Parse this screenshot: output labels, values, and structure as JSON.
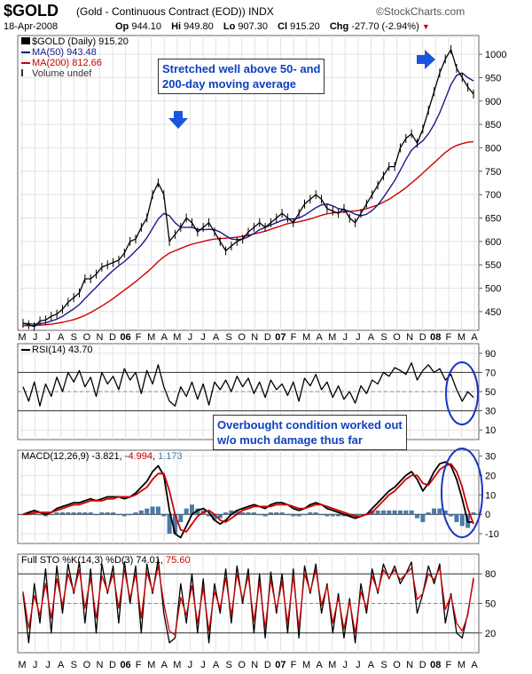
{
  "header": {
    "ticker": "$GOLD",
    "description": "(Gold - Continuous Contract (EOD))",
    "exchange": "INDX",
    "brand": "©StockCharts.com",
    "date": "18-Apr-2008",
    "open_label": "Op",
    "open": "944.10",
    "high_label": "Hi",
    "high": "949.80",
    "low_label": "Lo",
    "low": "907.30",
    "close_label": "Cl",
    "close": "915.20",
    "chg_label": "Chg",
    "chg": "-27.70 (-2.94%)"
  },
  "price_panel": {
    "legend": [
      {
        "text": "$GOLD (Daily) 915.20",
        "color": "#000000"
      },
      {
        "text": "MA(50) 943.48",
        "color": "#1a1a8c"
      },
      {
        "text": "MA(200) 812.66",
        "color": "#cc0000"
      },
      {
        "text": "Volume undef",
        "color": "#333333"
      }
    ],
    "callout": "Stretched well above 50- and\n200-day moving average"
  },
  "rsi_panel": {
    "label": "RSI(14) 43.70",
    "callout": "Overbought condition worked out\nw/o much damage thus far"
  },
  "macd_panel": {
    "label_main": "MACD(12,26,9) -3.821, ",
    "label_signal": "-4.994",
    "label_sep": ", ",
    "label_hist": "1.173"
  },
  "sto_panel": {
    "label_main": "Full STO %K(14,3) %D(3) 74.01, ",
    "label_d": "75.60"
  },
  "colors": {
    "price": "#000000",
    "ma50": "#1a1a8c",
    "ma200": "#cc0000",
    "rsi": "#000000",
    "macd": "#000000",
    "signal": "#cc0000",
    "histogram": "#4a7aa6",
    "sto_k": "#000000",
    "sto_d": "#cc0000",
    "callout_text": "#1040c0",
    "arrow": "#1a55e0"
  },
  "chart_data": [
    {
      "type": "line",
      "title": "$GOLD (Daily)",
      "x_tick_labels": [
        "M",
        "J",
        "J",
        "A",
        "S",
        "O",
        "N",
        "D",
        "06",
        "F",
        "M",
        "A",
        "M",
        "J",
        "J",
        "A",
        "S",
        "O",
        "N",
        "D",
        "07",
        "F",
        "M",
        "A",
        "M",
        "J",
        "J",
        "A",
        "S",
        "O",
        "N",
        "D",
        "08",
        "F",
        "M",
        "A"
      ],
      "y_ticks": [
        450,
        500,
        550,
        600,
        650,
        700,
        750,
        800,
        850,
        900,
        950,
        1000
      ],
      "ylim": [
        410,
        1040
      ],
      "grid": true,
      "series": [
        {
          "name": "$GOLD",
          "values": [
            425,
            422,
            418,
            430,
            432,
            440,
            445,
            455,
            470,
            480,
            490,
            520,
            520,
            530,
            545,
            550,
            555,
            560,
            575,
            600,
            605,
            630,
            650,
            700,
            725,
            700,
            600,
            615,
            630,
            650,
            640,
            620,
            630,
            640,
            620,
            600,
            580,
            590,
            600,
            605,
            620,
            630,
            640,
            630,
            640,
            650,
            660,
            650,
            640,
            660,
            680,
            690,
            700,
            690,
            670,
            665,
            660,
            670,
            650,
            640,
            660,
            680,
            700,
            720,
            740,
            760,
            760,
            800,
            820,
            830,
            810,
            840,
            880,
            920,
            960,
            990,
            1010,
            970,
            950,
            930,
            915
          ]
        },
        {
          "name": "MA(50)",
          "values": [
            425,
            424,
            423,
            424,
            426,
            430,
            434,
            440,
            448,
            456,
            465,
            478,
            490,
            502,
            515,
            527,
            538,
            548,
            557,
            568,
            580,
            592,
            608,
            628,
            648,
            660,
            655,
            640,
            630,
            630,
            630,
            626,
            625,
            626,
            625,
            620,
            612,
            605,
            604,
            605,
            610,
            617,
            625,
            630,
            635,
            640,
            645,
            648,
            648,
            650,
            656,
            664,
            672,
            678,
            680,
            676,
            670,
            668,
            664,
            658,
            655,
            658,
            666,
            678,
            694,
            712,
            730,
            752,
            775,
            795,
            806,
            815,
            830,
            850,
            875,
            905,
            935,
            955,
            960,
            950,
            943
          ]
        },
        {
          "name": "MA(200)",
          "values": [
            420,
            420,
            420,
            421,
            422,
            423,
            425,
            427,
            430,
            433,
            437,
            442,
            448,
            455,
            462,
            470,
            478,
            487,
            496,
            505,
            514,
            524,
            534,
            545,
            557,
            567,
            575,
            580,
            585,
            590,
            594,
            597,
            600,
            603,
            605,
            606,
            607,
            608,
            609,
            611,
            613,
            616,
            619,
            622,
            626,
            630,
            634,
            638,
            640,
            642,
            645,
            648,
            652,
            656,
            659,
            661,
            662,
            663,
            664,
            665,
            667,
            670,
            674,
            678,
            684,
            690,
            698,
            706,
            715,
            725,
            735,
            746,
            757,
            768,
            779,
            790,
            799,
            805,
            809,
            812,
            813
          ]
        }
      ]
    },
    {
      "type": "line",
      "title": "RSI(14)",
      "y_ticks": [
        10,
        30,
        50,
        70,
        90
      ],
      "ylim": [
        0,
        100
      ],
      "reference_lines": [
        30,
        50,
        70
      ],
      "series": [
        {
          "name": "RSI(14)",
          "values": [
            55,
            40,
            60,
            35,
            58,
            45,
            65,
            50,
            70,
            60,
            72,
            55,
            65,
            45,
            70,
            58,
            66,
            52,
            74,
            62,
            70,
            48,
            72,
            58,
            78,
            55,
            40,
            35,
            55,
            45,
            60,
            42,
            58,
            36,
            60,
            52,
            62,
            50,
            66,
            55,
            64,
            48,
            60,
            44,
            62,
            52,
            58,
            46,
            60,
            40,
            64,
            56,
            68,
            52,
            60,
            44,
            56,
            42,
            50,
            38,
            56,
            48,
            62,
            58,
            70,
            66,
            75,
            72,
            68,
            80,
            62,
            72,
            78,
            70,
            74,
            62,
            68,
            52,
            40,
            50,
            44
          ]
        }
      ]
    },
    {
      "type": "line",
      "title": "MACD(12,26,9)",
      "y_ticks": [
        -10,
        0,
        10,
        20,
        30
      ],
      "ylim": [
        -15,
        33
      ],
      "series": [
        {
          "name": "MACD",
          "values": [
            0,
            1,
            2,
            1,
            0,
            1,
            3,
            4,
            5,
            6,
            6,
            7,
            8,
            7,
            8,
            9,
            9,
            9,
            8,
            9,
            11,
            14,
            17,
            22,
            25,
            20,
            2,
            -10,
            -12,
            -6,
            0,
            2,
            3,
            1,
            -3,
            -5,
            -3,
            0,
            2,
            3,
            4,
            5,
            4,
            3,
            5,
            6,
            6,
            5,
            3,
            2,
            3,
            5,
            6,
            5,
            3,
            2,
            1,
            0,
            -1,
            -2,
            -1,
            0,
            3,
            6,
            9,
            12,
            14,
            17,
            20,
            22,
            18,
            12,
            16,
            22,
            26,
            27,
            25,
            18,
            8,
            -4,
            -4
          ]
        },
        {
          "name": "Signal",
          "values": [
            0,
            0,
            1,
            1,
            1,
            1,
            2,
            3,
            4,
            5,
            5,
            6,
            7,
            7,
            7,
            8,
            8,
            9,
            9,
            9,
            10,
            12,
            14,
            18,
            21,
            21,
            12,
            0,
            -8,
            -9,
            -5,
            -1,
            1,
            2,
            0,
            -3,
            -4,
            -2,
            0,
            2,
            3,
            4,
            4,
            4,
            4,
            5,
            5,
            5,
            4,
            3,
            3,
            4,
            5,
            5,
            4,
            3,
            2,
            1,
            0,
            -1,
            -1,
            0,
            1,
            4,
            7,
            10,
            12,
            15,
            18,
            20,
            20,
            16,
            15,
            19,
            23,
            25,
            26,
            22,
            14,
            3,
            -5
          ]
        },
        {
          "name": "Histogram",
          "values": [
            0,
            1,
            1,
            0,
            -1,
            0,
            1,
            1,
            1,
            1,
            1,
            1,
            1,
            0,
            1,
            1,
            1,
            0,
            -1,
            0,
            1,
            2,
            3,
            4,
            4,
            -1,
            -10,
            -10,
            -4,
            3,
            5,
            3,
            2,
            -1,
            -3,
            -2,
            1,
            2,
            2,
            1,
            1,
            1,
            0,
            -1,
            1,
            1,
            1,
            0,
            -1,
            -1,
            0,
            1,
            1,
            0,
            -1,
            -1,
            -1,
            -1,
            -1,
            -1,
            0,
            0,
            2,
            2,
            2,
            2,
            2,
            2,
            2,
            2,
            -2,
            -4,
            1,
            3,
            3,
            2,
            -1,
            -4,
            -6,
            -7,
            1
          ]
        }
      ]
    },
    {
      "type": "line",
      "title": "Full STO %K(14,3) %D(3)",
      "y_ticks": [
        20,
        50,
        80
      ],
      "ylim": [
        0,
        100
      ],
      "reference_lines": [
        20,
        50,
        80
      ],
      "series": [
        {
          "name": "%K",
          "values": [
            60,
            10,
            70,
            30,
            85,
            20,
            88,
            40,
            90,
            60,
            92,
            30,
            85,
            20,
            90,
            60,
            88,
            30,
            92,
            50,
            88,
            20,
            90,
            60,
            95,
            40,
            10,
            15,
            70,
            30,
            80,
            20,
            75,
            10,
            70,
            40,
            85,
            30,
            88,
            50,
            85,
            20,
            80,
            15,
            82,
            40,
            80,
            20,
            85,
            15,
            88,
            60,
            90,
            40,
            70,
            20,
            60,
            15,
            55,
            10,
            70,
            40,
            85,
            60,
            90,
            75,
            88,
            70,
            80,
            92,
            40,
            60,
            88,
            70,
            90,
            30,
            60,
            20,
            15,
            40,
            74
          ]
        },
        {
          "name": "%D",
          "values": [
            62,
            25,
            58,
            38,
            70,
            35,
            75,
            48,
            80,
            62,
            84,
            45,
            76,
            35,
            78,
            62,
            80,
            45,
            84,
            55,
            80,
            35,
            82,
            62,
            88,
            50,
            22,
            18,
            56,
            38,
            68,
            30,
            66,
            22,
            62,
            45,
            76,
            38,
            80,
            54,
            78,
            32,
            72,
            25,
            74,
            44,
            72,
            30,
            78,
            25,
            80,
            62,
            84,
            48,
            68,
            30,
            56,
            24,
            52,
            20,
            62,
            45,
            78,
            62,
            84,
            76,
            84,
            74,
            80,
            86,
            54,
            60,
            80,
            74,
            86,
            44,
            58,
            30,
            22,
            38,
            76
          ]
        }
      ]
    }
  ]
}
